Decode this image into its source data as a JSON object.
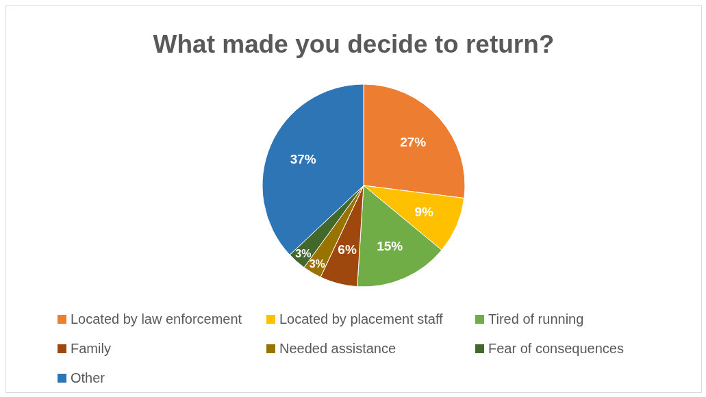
{
  "chart_data": {
    "type": "pie",
    "title": "What made you decide to return?",
    "categories": [
      "Located by law enforcement",
      "Located by placement staff",
      "Tired of running",
      "Family",
      "Needed assistance",
      "Fear of consequences",
      "Other"
    ],
    "values": [
      27,
      9,
      15,
      6,
      3,
      3,
      37
    ],
    "colors": [
      "#ed7d31",
      "#ffc000",
      "#70ad47",
      "#9e480e",
      "#997300",
      "#43682b",
      "#2e75b6"
    ],
    "value_labels": [
      "27%",
      "9%",
      "15%",
      "6%",
      "3%",
      "3%",
      "37%"
    ],
    "legend": "bottom"
  }
}
